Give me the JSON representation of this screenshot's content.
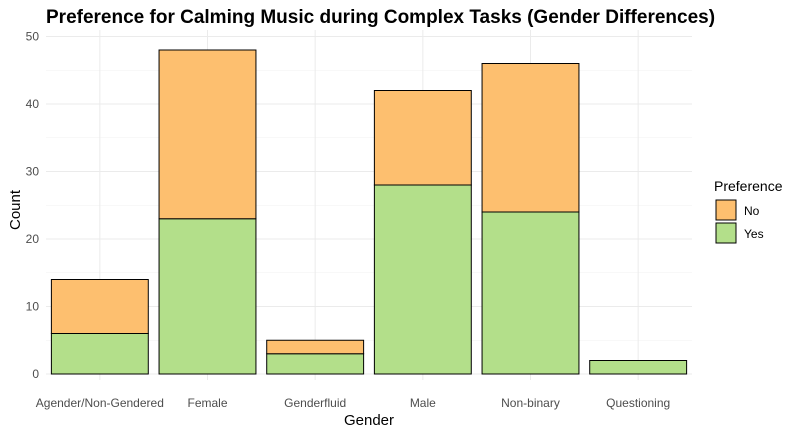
{
  "chart_data": {
    "type": "bar",
    "stacked": true,
    "title": "Preference for Calming Music during Complex Tasks (Gender Differences)",
    "xlabel": "Gender",
    "ylabel": "Count",
    "categories": [
      "Agender/Non-Gendered",
      "Female",
      "Genderfluid",
      "Male",
      "Non-binary",
      "Questioning"
    ],
    "series": [
      {
        "name": "Yes",
        "values": [
          6,
          23,
          3,
          28,
          24,
          2
        ],
        "color": "#b3df8a"
      },
      {
        "name": "No",
        "values": [
          8,
          25,
          2,
          14,
          22,
          0
        ],
        "color": "#fdbf6f"
      }
    ],
    "ylim": [
      0,
      50
    ],
    "yticks": [
      0,
      10,
      20,
      30,
      40,
      50
    ],
    "grid": true,
    "legend": {
      "title": "Preference",
      "position": "right",
      "items": [
        {
          "label": "No",
          "color": "#fdbf6f"
        },
        {
          "label": "Yes",
          "color": "#b3df8a"
        }
      ]
    }
  }
}
